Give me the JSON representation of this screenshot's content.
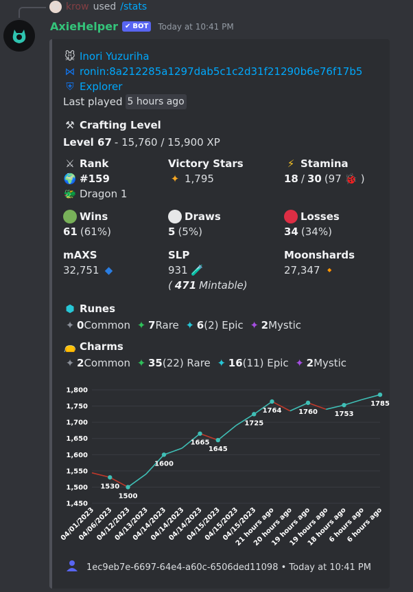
{
  "reply": {
    "user": "krow",
    "used": "used",
    "command": "/stats"
  },
  "bot": {
    "name": "AxieHelper",
    "badge": "BOT",
    "timestamp": "Today at 10:41 PM"
  },
  "profile": {
    "name": "Inori Yuzuriha",
    "ronin": "ronin:8a212285a1297dab5c1c2d31f21290b6e76f17b5",
    "link_label": "Explorer",
    "last_played_label": "Last played",
    "last_played_value": "5 hours ago"
  },
  "crafting": {
    "title": "Crafting Level",
    "level_label": "Level 67",
    "xp": " - 15,760 / 15,900 XP"
  },
  "rank": {
    "title": "Rank",
    "rank": "#159",
    "division": "Dragon 1"
  },
  "victory_stars": {
    "title": "Victory Stars",
    "value": "1,795"
  },
  "stamina": {
    "title": "Stamina",
    "value": "18",
    "sep": " / ",
    "max": "30",
    "extra_open": " (97 ",
    "extra_close": ")"
  },
  "wins": {
    "title": "Wins",
    "value": "61",
    "pct": " (61%)"
  },
  "draws": {
    "title": "Draws",
    "value": "5",
    "pct": " (5%)"
  },
  "losses": {
    "title": "Losses",
    "value": "34",
    "pct": " (34%)"
  },
  "maxs": {
    "title": "mAXS",
    "value": "32,751"
  },
  "slp": {
    "title": "SLP",
    "value": "931",
    "mint_open": "(",
    "mint_value": "471",
    "mint_label": " Mintable)"
  },
  "moonshards": {
    "title": "Moonshards",
    "value": "27,347"
  },
  "runes": {
    "title": "Runes",
    "items": [
      {
        "count": "0",
        "label": " Common",
        "color": "#8a8f98"
      },
      {
        "count": "7",
        "label": " Rare",
        "color": "#2fbf5a"
      },
      {
        "count": "6",
        "label": " (2) Epic",
        "color": "#27c6d6"
      },
      {
        "count": "2",
        "label": " Mystic",
        "color": "#a44ee0"
      }
    ]
  },
  "charms": {
    "title": "Charms",
    "items": [
      {
        "count": "2",
        "label": " Common",
        "color": "#8a8f98"
      },
      {
        "count": "35",
        "label": " (22) Rare",
        "color": "#2fbf5a"
      },
      {
        "count": "16",
        "label": " (11) Epic",
        "color": "#27c6d6"
      },
      {
        "count": "2",
        "label": " Mystic",
        "color": "#a44ee0"
      }
    ]
  },
  "footer": {
    "id": "1ec9eb7e-6697-64e4-a60c-6506ded11098",
    "sep": " • ",
    "time": "Today at 10:41 PM"
  },
  "chart_data": {
    "type": "line",
    "y_ticks": [
      "1,800",
      "1,750",
      "1,700",
      "1,650",
      "1,600",
      "1,550",
      "1,500",
      "1,450"
    ],
    "ylim": [
      1450,
      1800
    ],
    "x_labels": [
      "04/01/2023",
      "04/06/2023",
      "04/12/2023",
      "04/13/2023",
      "04/14/2023",
      "04/14/2023",
      "04/14/2023",
      "04/15/2023",
      "04/15/2023",
      "04/15/2023",
      "21 hours ago",
      "20 hours ago",
      "19 hours ago",
      "19 hours ago",
      "18 hours ago",
      "6 hours ago",
      "6 hours ago"
    ],
    "series": [
      {
        "values": [
          1544,
          1530,
          1500,
          1540,
          1600,
          1620,
          1665,
          1645,
          1690,
          1725,
          1764,
          1735,
          1760,
          1740,
          1753,
          1770,
          1785
        ]
      }
    ],
    "labeled_points": [
      1,
      2,
      4,
      6,
      7,
      9,
      10,
      12,
      14,
      16
    ],
    "up_color": "#3fbfb6",
    "down_color": "#c0392b",
    "grid": true
  }
}
